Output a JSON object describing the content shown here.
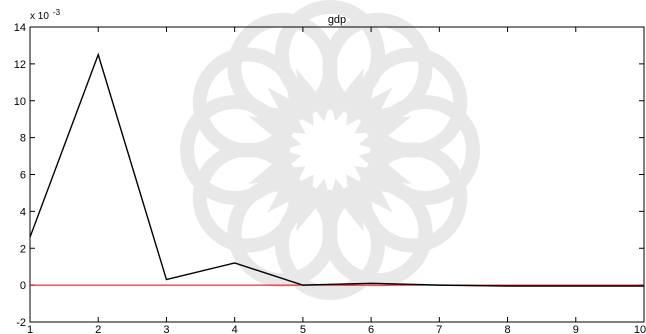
{
  "chart_data": {
    "type": "line",
    "title": "gdp",
    "xlabel": "",
    "ylabel": "",
    "y_multiplier_base": "x 10",
    "y_multiplier_exponent": "-3",
    "xlim": [
      1,
      10
    ],
    "ylim": [
      -2,
      14
    ],
    "x_ticks": [
      1,
      2,
      3,
      4,
      5,
      6,
      7,
      8,
      9,
      10
    ],
    "y_ticks": [
      -2,
      0,
      2,
      4,
      6,
      8,
      10,
      12,
      14
    ],
    "grid": false,
    "series": [
      {
        "color": "#000000",
        "x": [
          1,
          2,
          3,
          4,
          5,
          6,
          7,
          8,
          9,
          10
        ],
        "values": [
          2.6,
          12.5,
          0.3,
          1.2,
          0.0,
          0.1,
          0.0,
          -0.05,
          -0.05,
          -0.05
        ]
      },
      {
        "color": "#e00000",
        "x": [
          1,
          10
        ],
        "values": [
          0,
          0
        ]
      }
    ],
    "watermark": "ornamental-star-watermark"
  }
}
